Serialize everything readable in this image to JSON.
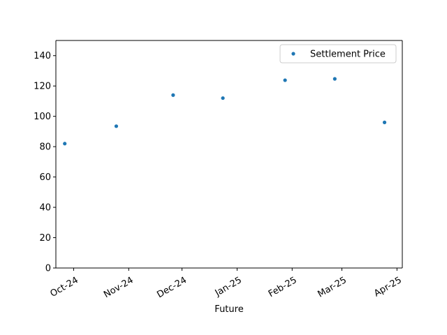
{
  "chart_data": {
    "type": "scatter",
    "title": "",
    "xlabel": "Future",
    "ylabel": "",
    "ylim": [
      0,
      150
    ],
    "yticks": [
      0,
      20,
      40,
      60,
      80,
      100,
      120,
      140
    ],
    "xlim": [
      "2024-09-21",
      "2025-04-04"
    ],
    "xticks": [
      {
        "date": "2024-10-01",
        "label": "Oct-24"
      },
      {
        "date": "2024-11-01",
        "label": "Nov-24"
      },
      {
        "date": "2024-12-01",
        "label": "Dec-24"
      },
      {
        "date": "2025-01-01",
        "label": "Jan-25"
      },
      {
        "date": "2025-02-01",
        "label": "Feb-25"
      },
      {
        "date": "2025-03-01",
        "label": "Mar-25"
      },
      {
        "date": "2025-04-01",
        "label": "Apr-25"
      }
    ],
    "grid": false,
    "legend": {
      "position": "top-right"
    },
    "series": [
      {
        "name": "Settlement Price",
        "color": "#1f77b4",
        "marker": "point",
        "points": [
          {
            "x": "2024-09-26",
            "y": 82
          },
          {
            "x": "2024-10-25",
            "y": 93.5
          },
          {
            "x": "2024-11-26",
            "y": 114
          },
          {
            "x": "2024-12-24",
            "y": 112
          },
          {
            "x": "2025-01-28",
            "y": 123.8
          },
          {
            "x": "2025-02-25",
            "y": 124.7
          },
          {
            "x": "2025-03-25",
            "y": 96
          }
        ]
      }
    ]
  }
}
